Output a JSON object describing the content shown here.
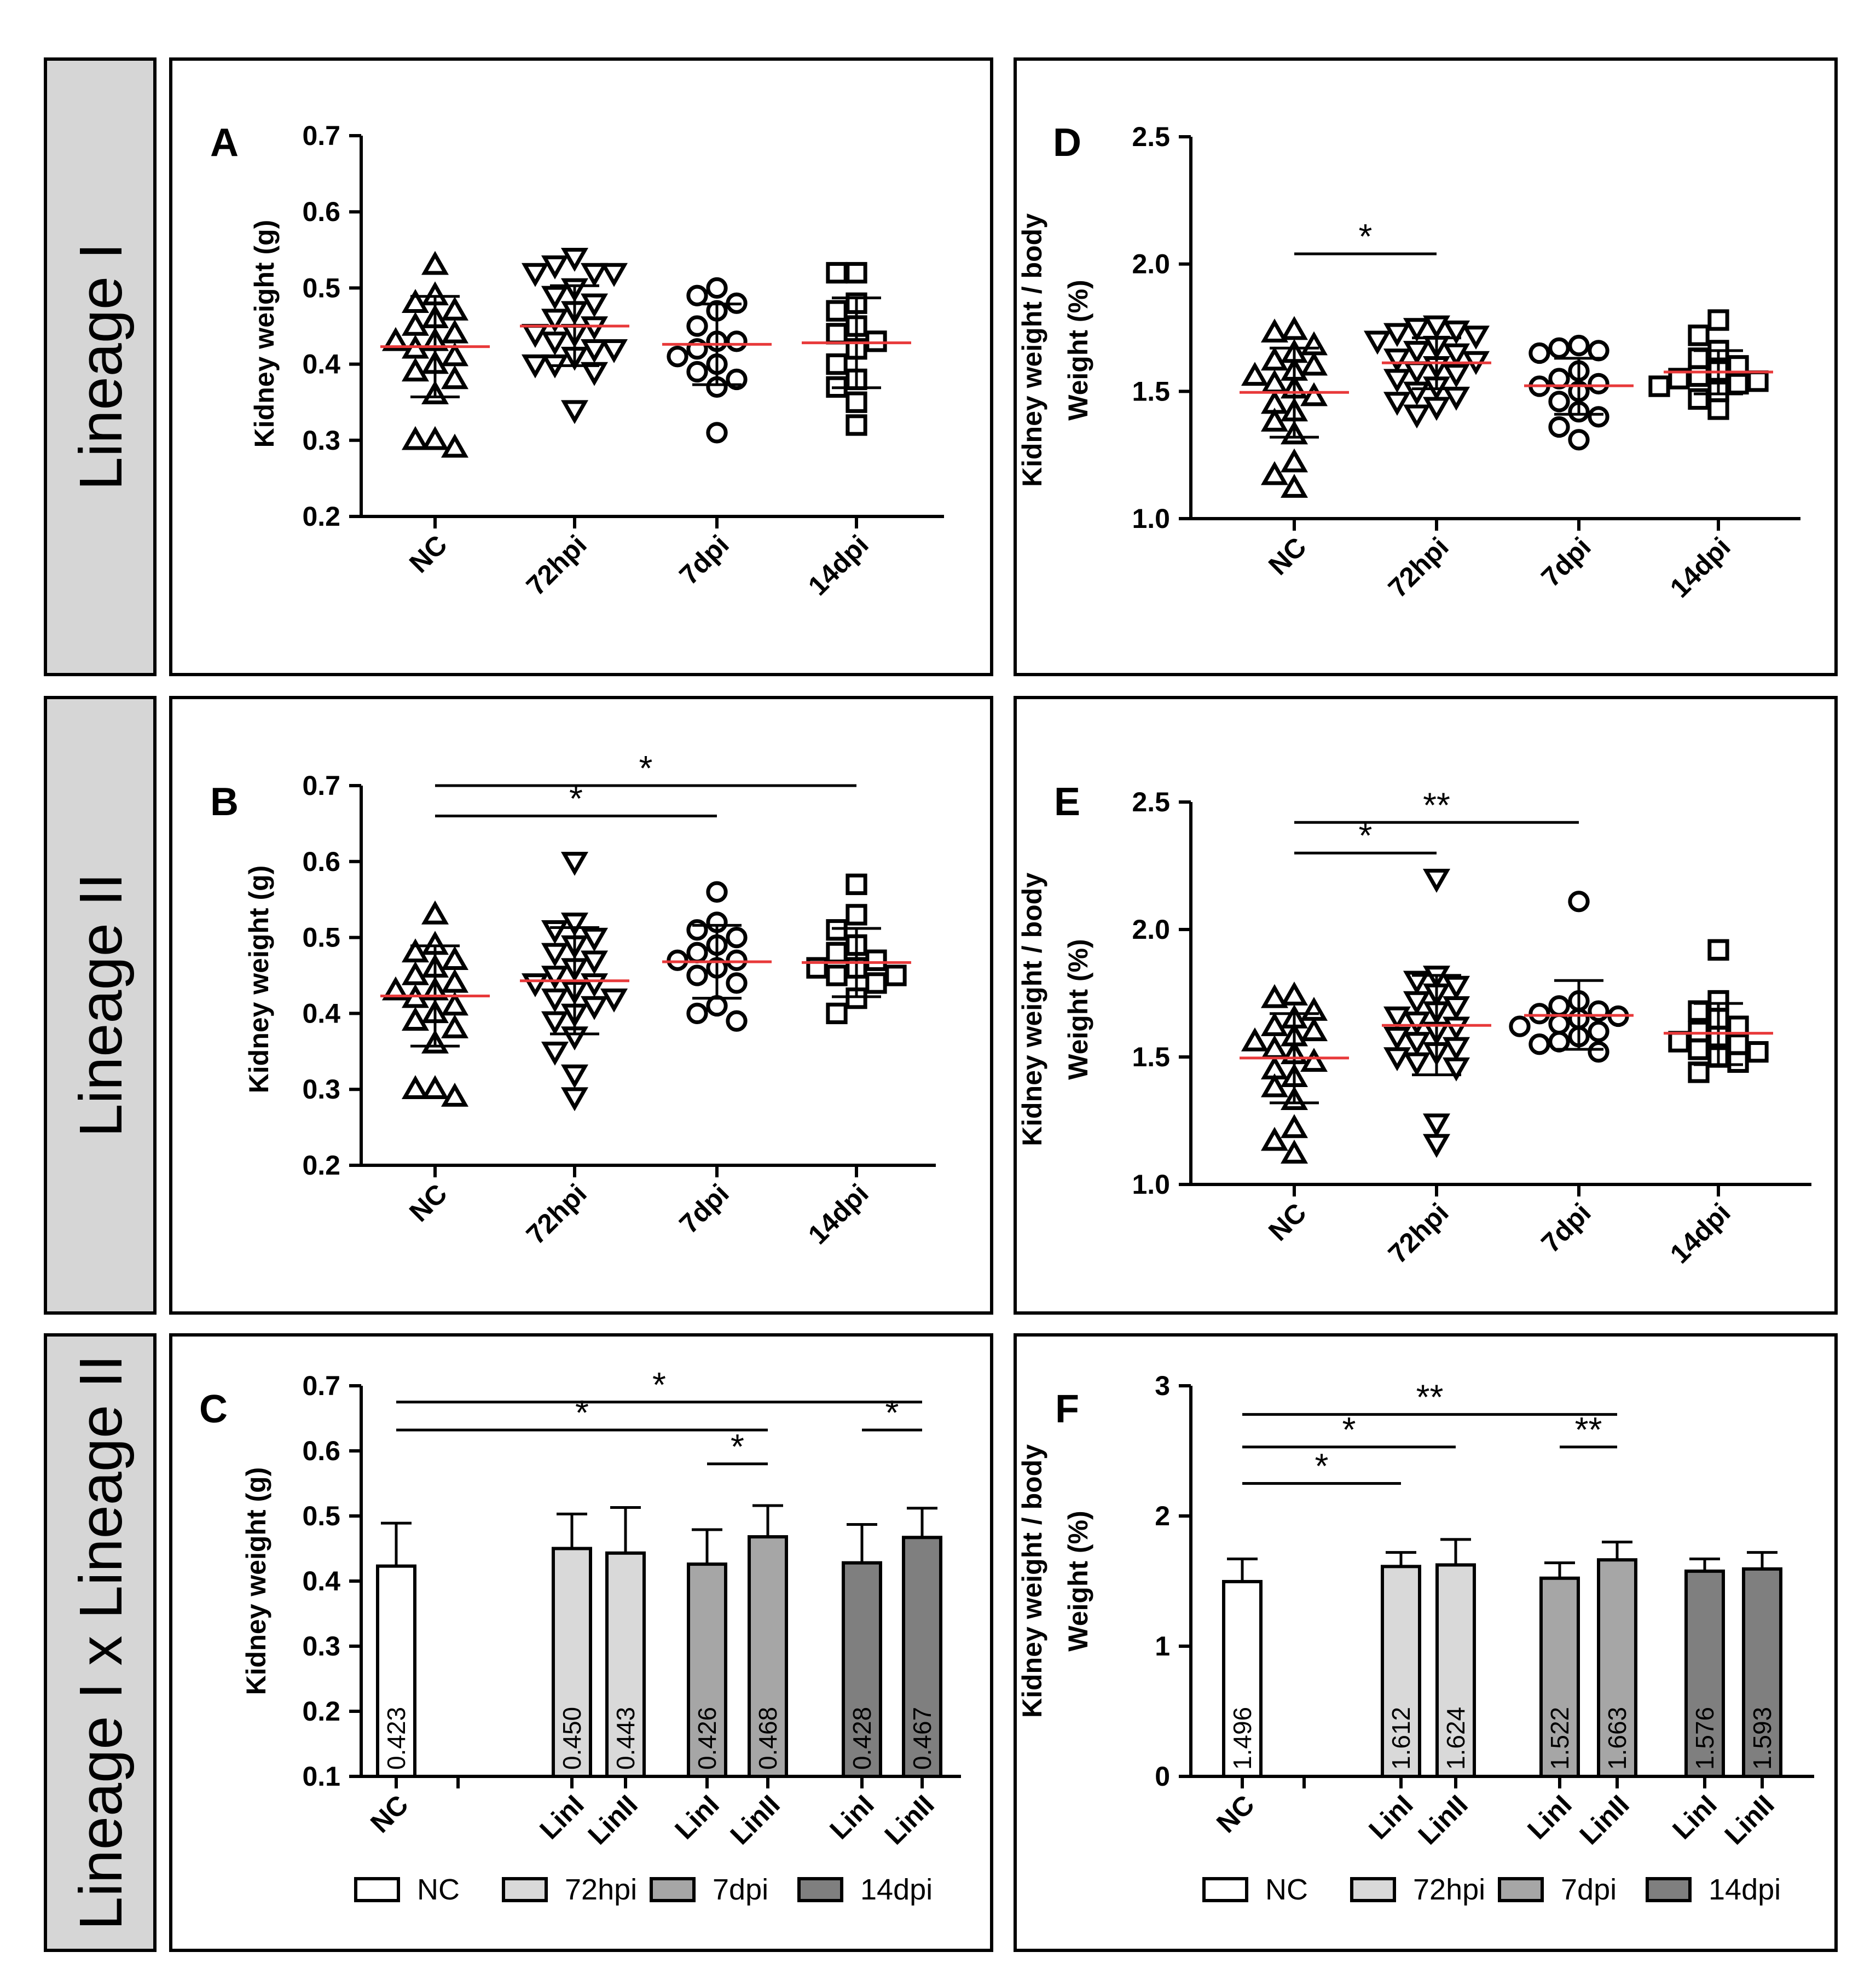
{
  "figure": {
    "row_labels": [
      "Lineage I",
      "Lineage II",
      "Lineage I x Lineage II"
    ],
    "colors": {
      "row_label_fill": "#d6d6d6",
      "mean_line": "#e8393a",
      "ink": "#000000",
      "nc_fill": "#ffffff",
      "hpi72_fill": "#d9d9d9",
      "dpi7_fill": "#a6a6a6",
      "dpi14_fill": "#7f7f7f"
    },
    "legend": [
      "NC",
      "72hpi",
      "7dpi",
      "14dpi"
    ]
  },
  "chart_data": [
    {
      "panel": "A",
      "type": "scatter",
      "ylabel": "Kidney weight (g)",
      "ylim": [
        0.2,
        0.7
      ],
      "yticks": [
        "0.2",
        "0.3",
        "0.4",
        "0.5",
        "0.6",
        "0.7"
      ],
      "categories": [
        "NC",
        "72hpi",
        "7dpi",
        "14dpi"
      ],
      "groups": [
        {
          "name": "NC",
          "marker": "triangle-up",
          "mean": 0.423,
          "sd_low": 0.357,
          "sd_high": 0.489,
          "values": [
            0.53,
            0.49,
            0.48,
            0.47,
            0.46,
            0.45,
            0.44,
            0.43,
            0.43,
            0.42,
            0.41,
            0.4,
            0.39,
            0.38,
            0.36,
            0.3,
            0.3,
            0.29
          ]
        },
        {
          "name": "72hpi",
          "marker": "triangle-down",
          "mean": 0.45,
          "sd_low": 0.398,
          "sd_high": 0.503,
          "values": [
            0.54,
            0.53,
            0.52,
            0.52,
            0.52,
            0.5,
            0.49,
            0.48,
            0.47,
            0.46,
            0.45,
            0.44,
            0.44,
            0.43,
            0.42,
            0.42,
            0.41,
            0.4,
            0.4,
            0.39,
            0.34
          ]
        },
        {
          "name": "7dpi",
          "marker": "circle",
          "mean": 0.426,
          "sd_low": 0.373,
          "sd_high": 0.479,
          "values": [
            0.5,
            0.49,
            0.48,
            0.47,
            0.45,
            0.43,
            0.43,
            0.42,
            0.41,
            0.4,
            0.39,
            0.38,
            0.37,
            0.31
          ]
        },
        {
          "name": "14dpi",
          "marker": "square",
          "mean": 0.428,
          "sd_low": 0.369,
          "sd_high": 0.487,
          "values": [
            0.52,
            0.52,
            0.48,
            0.47,
            0.45,
            0.44,
            0.43,
            0.42,
            0.4,
            0.38,
            0.37,
            0.35,
            0.32
          ]
        }
      ],
      "significance": []
    },
    {
      "panel": "B",
      "type": "scatter",
      "ylabel": "Kidney weight (g)",
      "ylim": [
        0.2,
        0.7
      ],
      "yticks": [
        "0.2",
        "0.3",
        "0.4",
        "0.5",
        "0.6",
        "0.7"
      ],
      "categories": [
        "NC",
        "72hpi",
        "7dpi",
        "14dpi"
      ],
      "groups": [
        {
          "name": "NC",
          "marker": "triangle-up",
          "mean": 0.423,
          "sd_low": 0.357,
          "sd_high": 0.489,
          "values": [
            0.53,
            0.49,
            0.48,
            0.47,
            0.46,
            0.45,
            0.44,
            0.43,
            0.43,
            0.42,
            0.41,
            0.4,
            0.39,
            0.38,
            0.36,
            0.3,
            0.3,
            0.29
          ]
        },
        {
          "name": "72hpi",
          "marker": "triangle-down",
          "mean": 0.443,
          "sd_low": 0.373,
          "sd_high": 0.513,
          "values": [
            0.6,
            0.52,
            0.51,
            0.5,
            0.49,
            0.48,
            0.47,
            0.46,
            0.45,
            0.44,
            0.44,
            0.43,
            0.42,
            0.42,
            0.41,
            0.4,
            0.39,
            0.37,
            0.35,
            0.32,
            0.29
          ]
        },
        {
          "name": "7dpi",
          "marker": "circle",
          "mean": 0.468,
          "sd_low": 0.42,
          "sd_high": 0.516,
          "values": [
            0.56,
            0.52,
            0.51,
            0.5,
            0.49,
            0.48,
            0.47,
            0.47,
            0.46,
            0.45,
            0.44,
            0.41,
            0.4,
            0.39
          ]
        },
        {
          "name": "14dpi",
          "marker": "square",
          "mean": 0.467,
          "sd_low": 0.422,
          "sd_high": 0.512,
          "values": [
            0.57,
            0.53,
            0.51,
            0.49,
            0.48,
            0.47,
            0.46,
            0.46,
            0.45,
            0.45,
            0.44,
            0.42,
            0.4
          ]
        }
      ],
      "significance": [
        {
          "from": 0,
          "to": 2,
          "label": "*",
          "y": 0.66
        },
        {
          "from": 0,
          "to": 3,
          "label": "*",
          "y": 0.7
        }
      ]
    },
    {
      "panel": "C",
      "type": "bar",
      "ylabel": "Kidney weight (g)",
      "ylim": [
        0.1,
        0.7
      ],
      "yticks": [
        "0.1",
        "0.2",
        "0.3",
        "0.4",
        "0.5",
        "0.6",
        "0.7"
      ],
      "tick_labels": [
        "NC",
        "",
        "LinI",
        "LinII",
        "LinI",
        "LinII",
        "LinI",
        "LinII"
      ],
      "bars": [
        {
          "pos": 0,
          "value": 0.423,
          "err": 0.489,
          "label": "0.423",
          "group": "NC"
        },
        {
          "pos": 2,
          "value": 0.45,
          "err": 0.503,
          "label": "0.450",
          "group": "72hpi"
        },
        {
          "pos": 3,
          "value": 0.443,
          "err": 0.513,
          "label": "0.443",
          "group": "72hpi"
        },
        {
          "pos": 4,
          "value": 0.426,
          "err": 0.479,
          "label": "0.426",
          "group": "7dpi"
        },
        {
          "pos": 5,
          "value": 0.468,
          "err": 0.516,
          "label": "0.468",
          "group": "7dpi"
        },
        {
          "pos": 6,
          "value": 0.428,
          "err": 0.487,
          "label": "0.428",
          "group": "14dpi"
        },
        {
          "pos": 7,
          "value": 0.467,
          "err": 0.512,
          "label": "0.467",
          "group": "14dpi"
        }
      ],
      "significance": [
        {
          "from": 0,
          "to": 7,
          "label": "*",
          "y": 0.675
        },
        {
          "from": 0,
          "to": 5,
          "label": "*",
          "y": 0.632
        },
        {
          "from": 4,
          "to": 5,
          "label": "*",
          "y": 0.58
        },
        {
          "from": 6,
          "to": 7,
          "label": "*",
          "y": 0.632
        }
      ]
    },
    {
      "panel": "D",
      "type": "scatter",
      "ylabel": [
        "Kidney weight / body",
        "Weight (%)"
      ],
      "ylim": [
        1.0,
        2.5
      ],
      "yticks": [
        "1.0",
        "1.5",
        "2.0",
        "2.5"
      ],
      "categories": [
        "NC",
        "72hpi",
        "7dpi",
        "14dpi"
      ],
      "groups": [
        {
          "name": "NC",
          "marker": "triangle-up",
          "mean": 1.496,
          "sd_low": 1.32,
          "sd_high": 1.67,
          "values": [
            1.74,
            1.73,
            1.68,
            1.65,
            1.62,
            1.6,
            1.58,
            1.56,
            1.53,
            1.51,
            1.48,
            1.45,
            1.42,
            1.38,
            1.33,
            1.22,
            1.17,
            1.12
          ]
        },
        {
          "name": "72hpi",
          "marker": "triangle-down",
          "mean": 1.612,
          "sd_low": 1.51,
          "sd_high": 1.71,
          "values": [
            1.76,
            1.75,
            1.74,
            1.73,
            1.72,
            1.7,
            1.68,
            1.66,
            1.65,
            1.63,
            1.62,
            1.6,
            1.58,
            1.57,
            1.55,
            1.52,
            1.5,
            1.48,
            1.46,
            1.44,
            1.41
          ]
        },
        {
          "name": "7dpi",
          "marker": "circle",
          "mean": 1.522,
          "sd_low": 1.41,
          "sd_high": 1.63,
          "values": [
            1.68,
            1.67,
            1.66,
            1.65,
            1.58,
            1.55,
            1.53,
            1.52,
            1.5,
            1.46,
            1.42,
            1.4,
            1.36,
            1.31
          ]
        },
        {
          "name": "14dpi",
          "marker": "square",
          "mean": 1.576,
          "sd_low": 1.49,
          "sd_high": 1.66,
          "values": [
            1.78,
            1.72,
            1.66,
            1.63,
            1.6,
            1.58,
            1.56,
            1.55,
            1.54,
            1.53,
            1.52,
            1.5,
            1.47,
            1.43
          ]
        }
      ],
      "significance": [
        {
          "from": 0,
          "to": 1,
          "label": "*",
          "y": 2.04
        }
      ]
    },
    {
      "panel": "E",
      "type": "scatter",
      "ylabel": [
        "Kidney weight / body",
        "Weight (%)"
      ],
      "ylim": [
        1.0,
        2.5
      ],
      "yticks": [
        "1.0",
        "1.5",
        "2.0",
        "2.5"
      ],
      "categories": [
        "NC",
        "72hpi",
        "7dpi",
        "14dpi"
      ],
      "groups": [
        {
          "name": "NC",
          "marker": "triangle-up",
          "mean": 1.496,
          "sd_low": 1.32,
          "sd_high": 1.67,
          "values": [
            1.74,
            1.73,
            1.68,
            1.65,
            1.62,
            1.6,
            1.58,
            1.56,
            1.53,
            1.51,
            1.48,
            1.45,
            1.42,
            1.38,
            1.33,
            1.22,
            1.17,
            1.12
          ]
        },
        {
          "name": "72hpi",
          "marker": "triangle-down",
          "mean": 1.624,
          "sd_low": 1.43,
          "sd_high": 1.82,
          "values": [
            2.2,
            1.82,
            1.8,
            1.78,
            1.75,
            1.72,
            1.7,
            1.68,
            1.66,
            1.64,
            1.62,
            1.6,
            1.58,
            1.56,
            1.54,
            1.52,
            1.5,
            1.48,
            1.46,
            1.24,
            1.16
          ]
        },
        {
          "name": "7dpi",
          "marker": "circle",
          "mean": 1.663,
          "sd_low": 1.53,
          "sd_high": 1.8,
          "values": [
            2.11,
            1.72,
            1.7,
            1.68,
            1.67,
            1.66,
            1.65,
            1.63,
            1.62,
            1.6,
            1.58,
            1.56,
            1.55,
            1.52
          ]
        },
        {
          "name": "14dpi",
          "marker": "square",
          "mean": 1.593,
          "sd_low": 1.47,
          "sd_high": 1.71,
          "values": [
            1.92,
            1.72,
            1.68,
            1.65,
            1.62,
            1.6,
            1.58,
            1.56,
            1.55,
            1.53,
            1.52,
            1.5,
            1.48,
            1.44
          ]
        }
      ],
      "significance": [
        {
          "from": 0,
          "to": 1,
          "label": "*",
          "y": 2.3
        },
        {
          "from": 0,
          "to": 2,
          "label": "**",
          "y": 2.42
        }
      ]
    },
    {
      "panel": "F",
      "type": "bar",
      "ylabel": [
        "Kidney weight / body",
        "Weight (%)"
      ],
      "ylim": [
        0,
        3
      ],
      "yticks": [
        "0",
        "1",
        "2",
        "3"
      ],
      "tick_labels": [
        "NC",
        "",
        "LinI",
        "LinII",
        "LinI",
        "LinII",
        "LinI",
        "LinII"
      ],
      "bars": [
        {
          "pos": 0,
          "value": 1.496,
          "err": 1.67,
          "label": "1.496",
          "group": "NC"
        },
        {
          "pos": 2,
          "value": 1.612,
          "err": 1.72,
          "label": "1.612",
          "group": "72hpi"
        },
        {
          "pos": 3,
          "value": 1.624,
          "err": 1.82,
          "label": "1.624",
          "group": "72hpi"
        },
        {
          "pos": 4,
          "value": 1.522,
          "err": 1.64,
          "label": "1.522",
          "group": "7dpi"
        },
        {
          "pos": 5,
          "value": 1.663,
          "err": 1.8,
          "label": "1.663",
          "group": "7dpi"
        },
        {
          "pos": 6,
          "value": 1.576,
          "err": 1.67,
          "label": "1.576",
          "group": "14dpi"
        },
        {
          "pos": 7,
          "value": 1.593,
          "err": 1.72,
          "label": "1.593",
          "group": "14dpi"
        }
      ],
      "significance": [
        {
          "from": 0,
          "to": 5,
          "label": "**",
          "y": 2.78
        },
        {
          "from": 0,
          "to": 3,
          "label": "*",
          "y": 2.53
        },
        {
          "from": 0,
          "to": 2,
          "label": "*",
          "y": 2.25
        },
        {
          "from": 4,
          "to": 5,
          "label": "**",
          "y": 2.53
        }
      ]
    }
  ]
}
